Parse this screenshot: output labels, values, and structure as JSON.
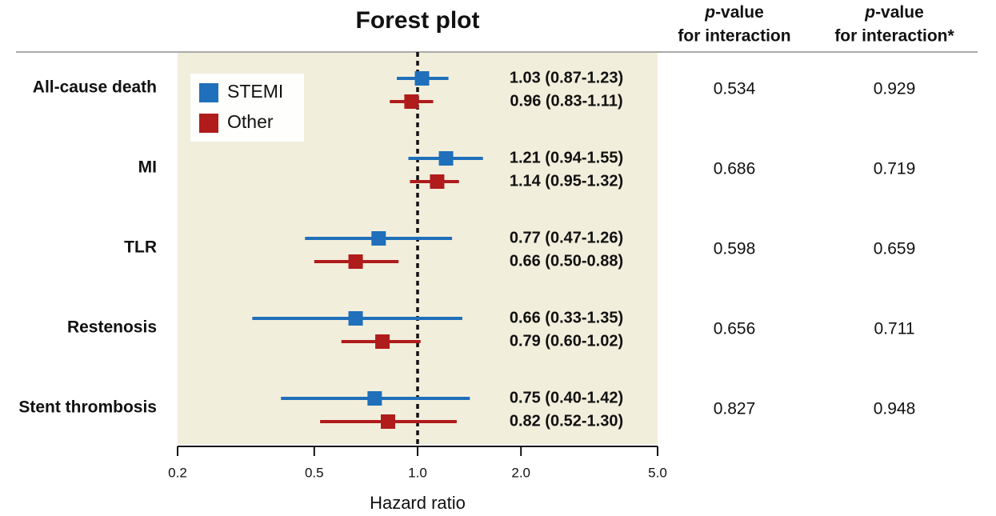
{
  "chart_data": {
    "type": "forest",
    "title": "Forest plot",
    "x_label": "Hazard ratio",
    "log_x": true,
    "xlim": [
      0.2,
      5
    ],
    "reference_line": 1,
    "xticks": [
      0.2,
      0.5,
      {
        "value": 1,
        "label": "1.0"
      },
      {
        "value": 2,
        "label": "2.0"
      },
      {
        "value": 5,
        "label": "5.0"
      }
    ],
    "categories": [
      "All-cause death",
      "MI",
      "TLR",
      "Restenosis",
      "Stent thrombosis"
    ],
    "legend": "upper left",
    "series": [
      {
        "name": "STEMI",
        "color": "#1f6fba",
        "values": [
          1.03,
          1.21,
          0.77,
          0.66,
          0.75
        ],
        "lower": [
          0.87,
          0.94,
          0.47,
          0.33,
          0.4
        ],
        "upper": [
          1.23,
          1.55,
          1.26,
          1.35,
          1.42
        ],
        "value_labels": [
          "1.03 (0.87-1.23)",
          "1.21 (0.94-1.55)",
          "0.77 (0.47-1.26)",
          "0.66 (0.33-1.35)",
          "0.75 (0.40-1.42)"
        ]
      },
      {
        "name": "Other",
        "color": "#b01c1c",
        "values": [
          0.96,
          1.14,
          0.66,
          0.79,
          0.82
        ],
        "lower": [
          0.83,
          0.95,
          0.5,
          0.6,
          0.52
        ],
        "upper": [
          1.11,
          1.32,
          0.88,
          1.02,
          1.3
        ],
        "value_labels": [
          "0.96 (0.83-1.11)",
          "1.14 (0.95-1.32)",
          "0.66 (0.50-0.88)",
          "0.79 (0.60-1.02)",
          "0.82 (0.52-1.30)"
        ]
      }
    ]
  },
  "table": {
    "columns": [
      {
        "header": [
          "p-value",
          "for interaction"
        ],
        "values": [
          0.534,
          0.686,
          0.598,
          0.656,
          0.827
        ]
      },
      {
        "header": [
          "p-value",
          "for interaction*"
        ],
        "values": [
          0.929,
          0.719,
          0.659,
          0.711,
          0.948
        ]
      }
    ]
  }
}
